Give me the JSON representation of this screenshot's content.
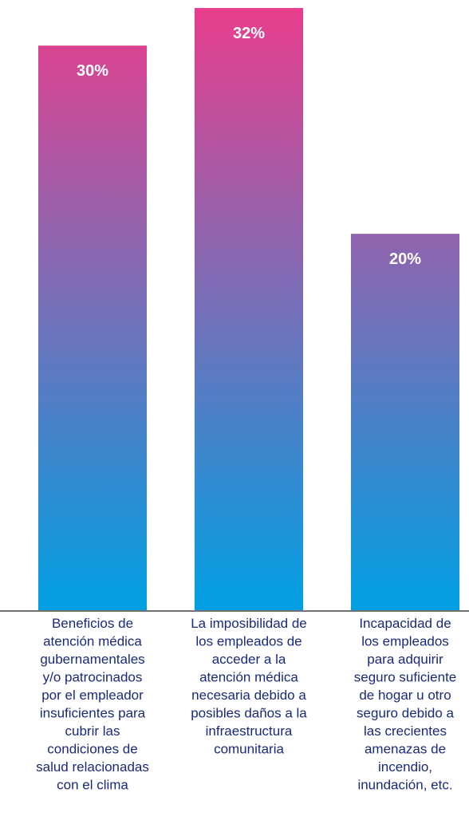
{
  "chart_data": {
    "type": "bar",
    "categories": [
      [
        "Beneficios de",
        "atención médica",
        "gubernamentales",
        "y/o patrocinados",
        "por el empleador",
        "insuficientes para",
        "cubrir las",
        "condiciones de",
        "salud relacionadas",
        "con el clima"
      ],
      [
        "La imposibilidad de",
        "los empleados de",
        "acceder a la",
        "atención médica",
        "necesaria debido a",
        "posibles daños a la",
        "infraestructura",
        "comunitaria"
      ],
      [
        "Incapacidad de",
        "los empleados",
        "para adquirir",
        "seguro suficiente",
        "de hogar u otro",
        "seguro debido a",
        "las crecientes",
        "amenazas de",
        "incendio,",
        "inundación, etc."
      ]
    ],
    "values": [
      30,
      32,
      20
    ],
    "data_labels": [
      "30%",
      "32%",
      "20%"
    ],
    "title": "",
    "xlabel": "",
    "ylabel": "",
    "ylim": [
      0,
      32
    ],
    "grid": false,
    "legend": "none",
    "colors": {
      "bar_top": "#e83e8c",
      "bar_bottom": "#00a0e3",
      "axis": "#444444",
      "data_label": "#ffffff",
      "category_text": "#1a2a7a"
    }
  }
}
